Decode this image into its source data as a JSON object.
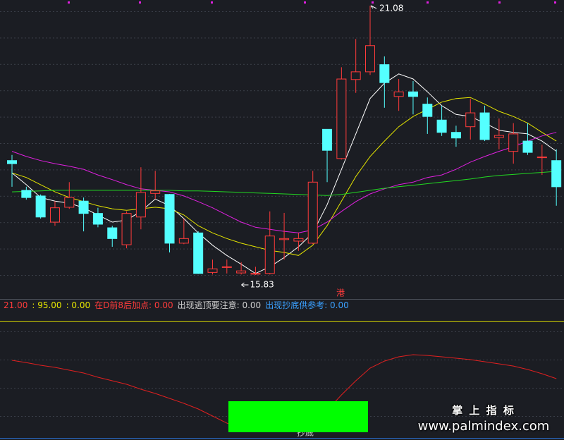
{
  "chart_data": [
    {
      "type": "candlestick",
      "categories": [
        null,
        null,
        null,
        null,
        null,
        null,
        null,
        null,
        null,
        null,
        null,
        null,
        null,
        null,
        null,
        null,
        null,
        null,
        null,
        null,
        null,
        null,
        null,
        null,
        null,
        null,
        null,
        null,
        null,
        null,
        null,
        null,
        null,
        null,
        null,
        null,
        null,
        null,
        null
      ],
      "open": [
        18.06,
        17.48,
        17.37,
        16.86,
        17.15,
        17.27,
        17.03,
        16.75,
        16.42,
        16.96,
        17.42,
        17.4,
        16.45,
        16.65,
        15.88,
        15.99,
        15.87,
        15.86,
        15.86,
        16.52,
        16.49,
        16.45,
        18.67,
        18.1,
        19.64,
        19.79,
        19.93,
        19.31,
        19.4,
        19.16,
        18.85,
        18.61,
        18.72,
        18.99,
        18.51,
        18.24,
        18.44,
        18.13,
        18.06
      ],
      "high": [
        18.17,
        17.55,
        17.4,
        17.27,
        17.64,
        17.34,
        17.14,
        16.79,
        17.07,
        17.93,
        17.86,
        17.41,
        16.93,
        16.68,
        16.13,
        16.13,
        16.08,
        15.99,
        17.07,
        17.04,
        16.65,
        17.86,
        18.67,
        19.88,
        20.43,
        21.08,
        20.09,
        19.65,
        19.61,
        19.29,
        19.13,
        18.74,
        19.27,
        19.13,
        18.88,
        18.79,
        18.79,
        18.37,
        18.28
      ],
      "low": [
        17.55,
        17.3,
        16.93,
        16.79,
        17.12,
        16.68,
        16.76,
        16.38,
        16.35,
        16.72,
        17.31,
        16.27,
        16.43,
        15.85,
        15.84,
        15.86,
        15.84,
        15.83,
        15.84,
        16.13,
        16.3,
        16.43,
        17.64,
        18.08,
        19.38,
        19.73,
        19.09,
        19.03,
        18.96,
        18.58,
        18.54,
        18.33,
        18.47,
        18.44,
        18.28,
        18.0,
        18.17,
        17.78,
        17.18
      ],
      "close": [
        18.0,
        17.34,
        16.96,
        17.14,
        17.34,
        17.03,
        16.82,
        16.54,
        17.03,
        17.44,
        17.47,
        16.45,
        16.54,
        15.86,
        15.95,
        15.99,
        15.91,
        15.86,
        16.59,
        16.54,
        16.54,
        17.64,
        18.26,
        19.65,
        19.79,
        20.3,
        19.58,
        19.4,
        19.31,
        18.92,
        18.61,
        18.5,
        18.99,
        18.47,
        18.55,
        18.58,
        18.22,
        18.13,
        17.55
      ],
      "up_color": "#ff3b3b",
      "down_color": "#54ffff",
      "series": [
        {
          "color": "#ffffff",
          "values": [
            17.82,
            17.59,
            17.34,
            17.27,
            17.23,
            17.14,
            17.0,
            16.86,
            16.9,
            17.07,
            17.31,
            17.18,
            16.93,
            16.65,
            16.41,
            16.21,
            16.04,
            15.86,
            15.99,
            16.17,
            16.38,
            16.65,
            17.2,
            17.89,
            18.58,
            19.27,
            19.57,
            19.75,
            19.65,
            19.4,
            19.13,
            18.96,
            18.92,
            18.79,
            18.65,
            18.61,
            18.58,
            18.44,
            18.24
          ]
        },
        {
          "color": "#e6e600",
          "values": [
            17.82,
            17.73,
            17.59,
            17.45,
            17.34,
            17.26,
            17.18,
            17.12,
            17.09,
            17.12,
            17.15,
            17.12,
            17.0,
            16.79,
            16.65,
            16.54,
            16.45,
            16.38,
            16.31,
            16.27,
            16.21,
            16.41,
            16.79,
            17.27,
            17.75,
            18.14,
            18.44,
            18.72,
            18.92,
            19.06,
            19.2,
            19.27,
            19.29,
            19.16,
            19.02,
            18.92,
            18.79,
            18.61,
            18.44
          ]
        },
        {
          "color": "#e020e0",
          "values": [
            18.24,
            18.14,
            18.06,
            18.0,
            17.95,
            17.89,
            17.78,
            17.69,
            17.59,
            17.51,
            17.48,
            17.45,
            17.37,
            17.26,
            17.14,
            17.0,
            16.86,
            16.76,
            16.72,
            16.68,
            16.65,
            16.71,
            16.86,
            17.07,
            17.26,
            17.41,
            17.51,
            17.59,
            17.64,
            17.73,
            17.78,
            17.89,
            18.03,
            18.14,
            18.24,
            18.33,
            18.44,
            18.54,
            18.61
          ]
        },
        {
          "color": "#22d822",
          "values": [
            17.45,
            17.46,
            17.47,
            17.48,
            17.48,
            17.48,
            17.48,
            17.48,
            17.48,
            17.48,
            17.48,
            17.48,
            17.47,
            17.47,
            17.46,
            17.45,
            17.44,
            17.43,
            17.42,
            17.41,
            17.4,
            17.39,
            17.38,
            17.4,
            17.44,
            17.48,
            17.52,
            17.55,
            17.58,
            17.61,
            17.64,
            17.67,
            17.7,
            17.74,
            17.77,
            17.79,
            17.81,
            17.83,
            17.85
          ]
        }
      ],
      "ylim": [
        15.39,
        21.19
      ],
      "high_label": 21.08,
      "low_label": 15.83,
      "marker_text": "港"
    },
    {
      "type": "line",
      "categories": [
        null,
        null,
        null,
        null,
        null,
        null,
        null,
        null,
        null,
        null,
        null,
        null,
        null,
        null,
        null,
        null,
        null,
        null,
        null,
        null,
        null,
        null,
        null,
        null,
        null,
        null,
        null,
        null,
        null,
        null,
        null,
        null,
        null,
        null,
        null,
        null,
        null,
        null,
        null
      ],
      "series": [
        {
          "color": "#e02020",
          "values": [
            44.8,
            41.8,
            38.4,
            35.6,
            32.0,
            28.3,
            22.8,
            18.3,
            13.7,
            7.3,
            1.8,
            -4.6,
            -11.0,
            -18.3,
            -27.4,
            -36.6,
            -43.0,
            -46.6,
            -47.5,
            -47.5,
            -45.7,
            -36.6,
            -20.1,
            0.0,
            18.3,
            34.7,
            43.8,
            49.3,
            52.1,
            51.1,
            49.3,
            47.5,
            45.7,
            42.9,
            40.2,
            37.4,
            32.9,
            27.4,
            21.0
          ]
        }
      ],
      "ylim": [
        -54.8,
        95
      ],
      "legend_texts": [
        {
          "text": "21.00",
          "color": "#ff3b3b"
        },
        {
          "text": ": 95.00",
          "color": "#e6e600"
        },
        {
          "text": ": 0.00",
          "color": "#e6e600"
        },
        {
          "text": "在D前8后加点: 0.00",
          "color": "#ff3b3b"
        },
        {
          "text": "出现逃顶要注意: 0.00",
          "color": "#cfcfcf"
        },
        {
          "text": "出现抄底供参考: 0.00",
          "color": "#3aa0ff"
        }
      ],
      "signal_label": "抄底"
    }
  ],
  "watermark": {
    "title": "掌 上 指 标",
    "url": "www.palmindex.com"
  }
}
